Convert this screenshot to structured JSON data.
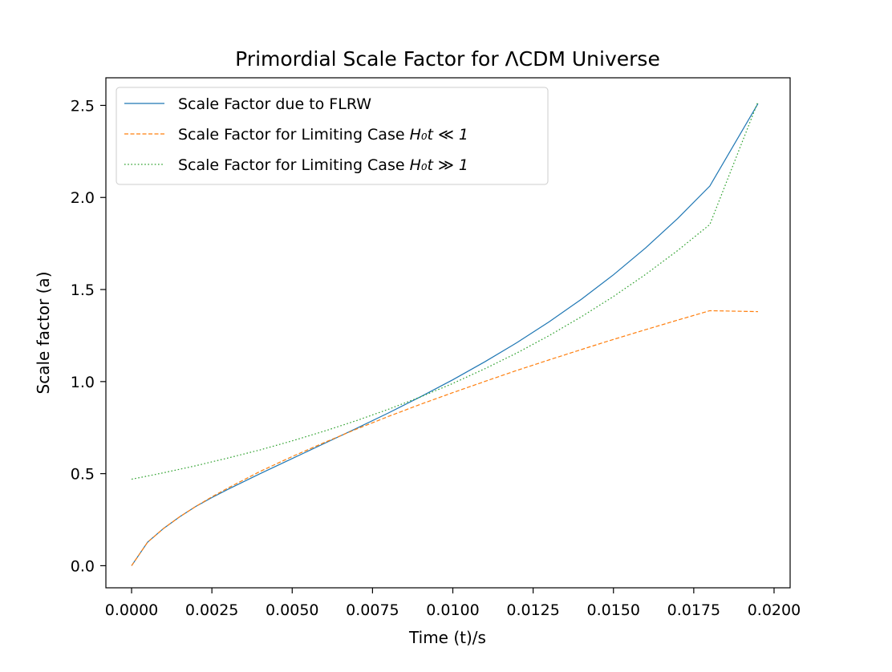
{
  "chart_data": {
    "type": "line",
    "title": "Primordial Scale Factor for ΛCDM Universe",
    "xlabel": "Time (t)/s",
    "ylabel": "Scale factor (a)",
    "xlim": [
      -0.0008,
      0.0205
    ],
    "ylim": [
      -0.12,
      2.65
    ],
    "xticks": [
      0.0,
      0.0025,
      0.005,
      0.0075,
      0.01,
      0.0125,
      0.015,
      0.0175,
      0.02
    ],
    "xtick_labels": [
      "0.0000",
      "0.0025",
      "0.0050",
      "0.0075",
      "0.0100",
      "0.0125",
      "0.0150",
      "0.0175",
      "0.0200"
    ],
    "yticks": [
      0.0,
      0.5,
      1.0,
      1.5,
      2.0,
      2.5
    ],
    "ytick_labels": [
      "0.0",
      "0.5",
      "1.0",
      "1.5",
      "2.0",
      "2.5"
    ],
    "grid": false,
    "legend_position": "upper-left",
    "x": [
      0.0,
      0.0005,
      0.001,
      0.0015,
      0.002,
      0.0025,
      0.003,
      0.004,
      0.005,
      0.006,
      0.007,
      0.008,
      0.009,
      0.01,
      0.011,
      0.012,
      0.013,
      0.014,
      0.015,
      0.016,
      0.017,
      0.018,
      0.0195
    ],
    "series": [
      {
        "name": "Scale Factor due to FLRW",
        "color": "#1f77b4",
        "style": "solid",
        "values": [
          0.0,
          0.128,
          0.203,
          0.266,
          0.322,
          0.37,
          0.415,
          0.5,
          0.582,
          0.664,
          0.746,
          0.83,
          0.918,
          1.01,
          1.108,
          1.212,
          1.325,
          1.447,
          1.58,
          1.726,
          1.886,
          2.062,
          2.51
        ]
      },
      {
        "name": "Scale Factor for Limiting Case H₀t ≪ 1",
        "legend_main": "Scale Factor for Limiting Case ",
        "legend_math": "H₀t ≪ 1",
        "color": "#ff7f0e",
        "style": "dashed",
        "values": [
          0.0,
          0.128,
          0.203,
          0.266,
          0.322,
          0.374,
          0.422,
          0.512,
          0.593,
          0.669,
          0.742,
          0.811,
          0.877,
          0.94,
          1.001,
          1.061,
          1.118,
          1.174,
          1.229,
          1.282,
          1.334,
          1.385,
          1.38
        ]
      },
      {
        "name": "Scale Factor for Limiting Case H₀t ≫ 1",
        "legend_main": "Scale Factor for Limiting Case ",
        "legend_math": "H₀t ≫ 1",
        "color": "#2ca02c",
        "style": "dotted",
        "values": [
          0.47,
          0.487,
          0.505,
          0.524,
          0.543,
          0.564,
          0.585,
          0.629,
          0.678,
          0.731,
          0.788,
          0.85,
          0.917,
          0.99,
          1.07,
          1.156,
          1.25,
          1.352,
          1.462,
          1.582,
          1.712,
          1.853,
          2.52
        ]
      }
    ]
  }
}
